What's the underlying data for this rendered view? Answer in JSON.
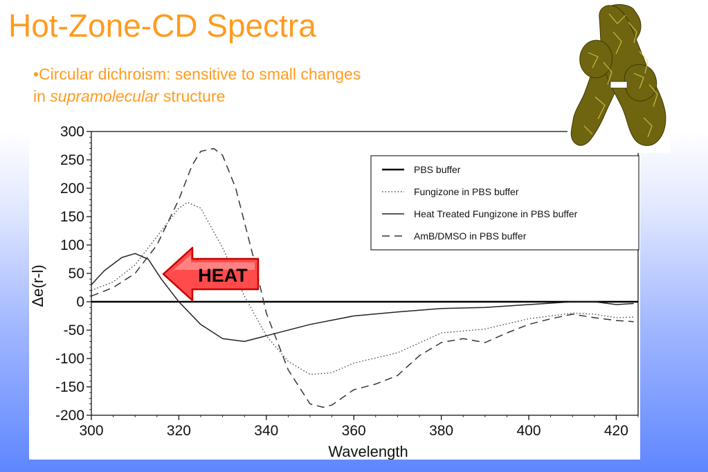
{
  "slide": {
    "title": "Hot-Zone-CD Spectra",
    "bullet_prefix": "•Circular dichroism: sensitive to small changes",
    "bullet_line2_start": "in ",
    "bullet_italic": "supramolecular",
    "bullet_line2_end": " structure"
  },
  "arrow": {
    "label": "HEAT",
    "fill": "#ff4b4b",
    "stroke": "#c80000"
  },
  "molecule": {
    "icon": "molecule-surface-image",
    "color": "#7b6e12"
  },
  "chart_data": {
    "type": "line",
    "xlabel": "Wavelength",
    "ylabel": "Δe(r-l)",
    "xlim": [
      300,
      425
    ],
    "ylim": [
      -200,
      300
    ],
    "xticks": [
      300,
      320,
      340,
      360,
      380,
      400,
      420
    ],
    "yticks": [
      300,
      250,
      200,
      150,
      100,
      50,
      0,
      -50,
      -100,
      -150,
      -200
    ],
    "grid": false,
    "legend_position": "top-right",
    "series": [
      {
        "name": "PBS buffer",
        "style": "solid-thick",
        "x": [
          300,
          320,
          340,
          360,
          380,
          400,
          425
        ],
        "y": [
          0,
          0,
          0,
          0,
          0,
          0,
          0
        ]
      },
      {
        "name": "Fungizone in PBS buffer",
        "style": "dotted",
        "x": [
          300,
          305,
          310,
          315,
          320,
          322,
          325,
          330,
          335,
          340,
          345,
          350,
          355,
          360,
          370,
          380,
          390,
          400,
          410,
          415,
          420,
          424
        ],
        "y": [
          20,
          35,
          65,
          115,
          165,
          175,
          165,
          95,
          10,
          -60,
          -105,
          -128,
          -125,
          -108,
          -90,
          -55,
          -48,
          -30,
          -20,
          -22,
          -28,
          -27
        ]
      },
      {
        "name": "Heat Treated Fungizone in PBS buffer",
        "style": "solid-thin",
        "x": [
          300,
          303,
          307,
          310,
          313,
          316,
          320,
          325,
          330,
          335,
          340,
          350,
          360,
          370,
          380,
          390,
          400,
          410,
          415,
          420,
          424
        ],
        "y": [
          30,
          55,
          78,
          85,
          75,
          40,
          0,
          -40,
          -65,
          -70,
          -60,
          -40,
          -25,
          -18,
          -12,
          -10,
          -5,
          0,
          0,
          -5,
          -3
        ]
      },
      {
        "name": "AmB/DMSO in PBS buffer",
        "style": "dashed",
        "x": [
          300,
          305,
          310,
          315,
          320,
          323,
          325,
          328,
          330,
          333,
          337,
          340,
          345,
          350,
          353,
          355,
          360,
          365,
          370,
          375,
          380,
          385,
          390,
          395,
          400,
          405,
          410,
          415,
          420,
          424
        ],
        "y": [
          10,
          25,
          50,
          100,
          180,
          240,
          265,
          270,
          258,
          200,
          80,
          -20,
          -120,
          -180,
          -186,
          -182,
          -155,
          -145,
          -130,
          -95,
          -72,
          -65,
          -72,
          -55,
          -40,
          -30,
          -22,
          -28,
          -33,
          -35
        ]
      }
    ]
  }
}
